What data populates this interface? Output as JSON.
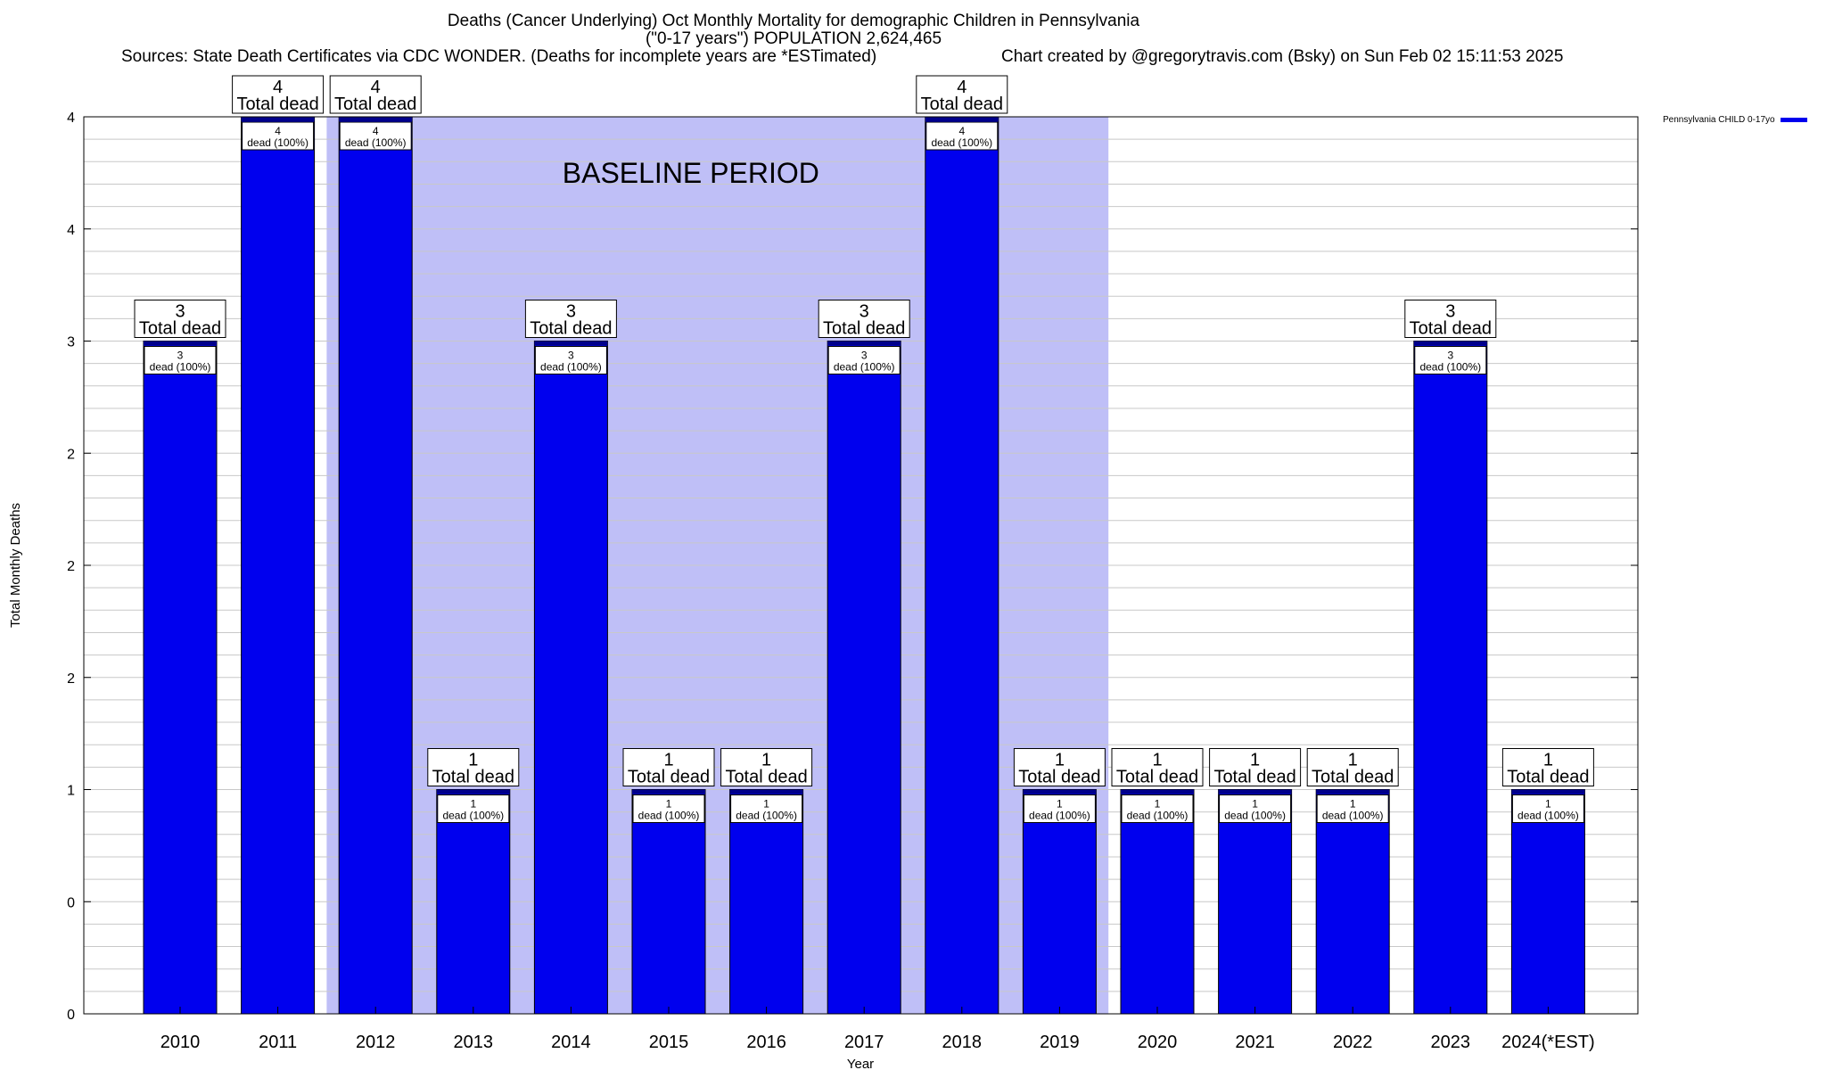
{
  "header": {
    "title_line1": "Deaths (Cancer Underlying) Oct Monthly Mortality for demographic Children in Pennsylvania",
    "title_line2": "(\"0-17 years\") POPULATION 2,624,465",
    "sources": "Sources: State Death Certificates via CDC WONDER. (Deaths for incomplete years are *ESTimated)",
    "credit": "Chart created by @gregorytravis.com (Bsky) on Sun Feb 02 15:11:53 2025"
  },
  "colors": {
    "bar": "#0000ee",
    "bar_cap": "#00008b",
    "baseline_band": "#bfbff7",
    "grid": "#c8c8c8"
  },
  "chart_data": {
    "type": "bar",
    "categories": [
      "2010",
      "2011",
      "2012",
      "2013",
      "2014",
      "2015",
      "2016",
      "2017",
      "2018",
      "2019",
      "2020",
      "2021",
      "2022",
      "2023",
      "2024(*EST)"
    ],
    "series": [
      {
        "name": "Pennsylvania CHILD 0-17yo",
        "values": [
          3,
          4,
          4,
          1,
          3,
          1,
          1,
          3,
          4,
          1,
          1,
          1,
          1,
          3,
          1
        ]
      }
    ],
    "total_labels": [
      "3",
      "4",
      "4",
      "1",
      "3",
      "1",
      "1",
      "3",
      "4",
      "1",
      "1",
      "1",
      "1",
      "3",
      "1"
    ],
    "total_label_suffix": "Total dead",
    "inner_labels": [
      "3",
      "4",
      "4",
      "1",
      "3",
      "1",
      "1",
      "3",
      "4",
      "1",
      "1",
      "1",
      "1",
      "3",
      "1"
    ],
    "inner_label_suffix": "dead (100%)",
    "xlabel": "Year",
    "ylabel": "Total Monthly Deaths",
    "ylim": [
      0,
      4
    ],
    "y_tick_labels": [
      "0",
      "0",
      "1",
      "2",
      "2",
      "2",
      "3",
      "4",
      "4"
    ],
    "grid": true,
    "baseline_period": {
      "label": "BASELINE PERIOD",
      "from": "2012",
      "to": "2019"
    },
    "legend": {
      "position": "top-right"
    }
  }
}
